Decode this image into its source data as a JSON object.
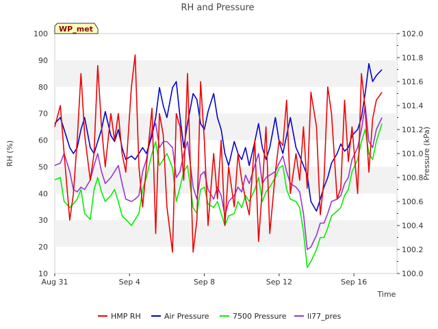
{
  "chart_data": {
    "type": "line",
    "title": "RH and Pressure",
    "badge": "WP_met",
    "xlabel": "Time",
    "ylabel": "RH (%)",
    "y2label": "Pressure (kPa)",
    "x_ticks": [
      "Aug 31",
      "Sep 4",
      "Sep 8",
      "Sep 12",
      "Sep 16"
    ],
    "x_tick_days": [
      0,
      4,
      8,
      12,
      16
    ],
    "xlim": [
      0,
      18.3
    ],
    "ylim": [
      10,
      100
    ],
    "y_ticks": [
      10,
      20,
      30,
      40,
      50,
      60,
      70,
      80,
      90,
      100
    ],
    "y2lim": [
      100.0,
      102.0
    ],
    "y2_ticks": [
      "100.0",
      "100.2",
      "100.4",
      "100.6",
      "100.8",
      "101.0",
      "101.2",
      "101.4",
      "101.6",
      "101.8",
      "102.0"
    ],
    "grid": "horizontal bands",
    "legend_position": "bottom",
    "colors": {
      "band": "#f2f2f2"
    },
    "series": [
      {
        "name": "HMP RH",
        "color": "#ee0000",
        "axis": "left",
        "x": [
          0.0,
          0.3,
          0.5,
          0.8,
          1.0,
          1.2,
          1.4,
          1.6,
          1.9,
          2.1,
          2.3,
          2.5,
          2.7,
          3.0,
          3.2,
          3.4,
          3.6,
          3.8,
          4.1,
          4.3,
          4.5,
          4.7,
          4.9,
          5.2,
          5.4,
          5.6,
          5.8,
          6.0,
          6.3,
          6.5,
          6.7,
          6.9,
          7.1,
          7.4,
          7.6,
          7.8,
          8.0,
          8.2,
          8.5,
          8.7,
          8.9,
          9.1,
          9.3,
          9.6,
          9.8,
          10.0,
          10.2,
          10.4,
          10.7,
          10.9,
          11.1,
          11.3,
          11.5,
          11.8,
          12.0,
          12.2,
          12.4,
          12.6,
          12.9,
          13.1,
          13.3,
          13.5,
          13.7,
          14.0,
          14.2,
          14.4,
          14.6,
          14.8,
          15.1,
          15.3,
          15.5,
          15.7,
          15.9,
          16.2,
          16.4,
          16.6,
          16.8,
          17.0,
          17.2,
          17.5
        ],
        "values": [
          65,
          73,
          55,
          30,
          40,
          60,
          85,
          62,
          45,
          55,
          88,
          65,
          50,
          70,
          60,
          70,
          55,
          48,
          80,
          92,
          50,
          35,
          50,
          72,
          25,
          70,
          62,
          35,
          18,
          70,
          65,
          45,
          85,
          18,
          30,
          82,
          60,
          28,
          55,
          38,
          60,
          28,
          50,
          35,
          55,
          45,
          38,
          32,
          60,
          22,
          42,
          65,
          25,
          48,
          60,
          58,
          75,
          40,
          55,
          45,
          65,
          42,
          78,
          65,
          32,
          45,
          80,
          70,
          38,
          42,
          75,
          52,
          65,
          40,
          85,
          72,
          48,
          68,
          75,
          78
        ]
      },
      {
        "name": "Air Pressure",
        "color": "#0000cc",
        "axis": "right",
        "x": [
          0.0,
          0.3,
          0.5,
          0.8,
          1.0,
          1.2,
          1.4,
          1.6,
          1.9,
          2.1,
          2.3,
          2.5,
          2.7,
          3.0,
          3.2,
          3.4,
          3.6,
          3.8,
          4.1,
          4.3,
          4.5,
          4.7,
          4.9,
          5.2,
          5.4,
          5.6,
          5.8,
          6.0,
          6.3,
          6.5,
          6.7,
          6.9,
          7.1,
          7.4,
          7.6,
          7.8,
          8.0,
          8.2,
          8.5,
          8.7,
          8.9,
          9.1,
          9.3,
          9.6,
          9.8,
          10.0,
          10.2,
          10.4,
          10.7,
          10.9,
          11.1,
          11.3,
          11.5,
          11.8,
          12.0,
          12.2,
          12.4,
          12.6,
          12.9,
          13.1,
          13.3,
          13.5,
          13.7,
          14.0,
          14.2,
          14.4,
          14.6,
          14.8,
          15.1,
          15.3,
          15.5,
          15.7,
          15.9,
          16.2,
          16.4,
          16.6,
          16.8,
          17.0,
          17.2,
          17.5
        ],
        "values": [
          101.25,
          101.3,
          101.2,
          101.05,
          101.0,
          101.05,
          101.2,
          101.3,
          101.05,
          101.0,
          101.1,
          101.2,
          101.35,
          101.15,
          101.1,
          101.2,
          101.05,
          100.95,
          100.98,
          100.95,
          101.0,
          101.05,
          101.0,
          101.15,
          101.3,
          101.55,
          101.4,
          101.3,
          101.55,
          101.6,
          101.3,
          101.05,
          101.25,
          101.5,
          101.45,
          101.25,
          101.2,
          101.35,
          101.5,
          101.3,
          101.2,
          101.0,
          100.9,
          101.1,
          101.0,
          100.95,
          101.05,
          100.9,
          101.1,
          101.25,
          101.05,
          100.95,
          101.05,
          101.3,
          101.1,
          101.0,
          101.15,
          101.3,
          101.05,
          100.98,
          100.9,
          100.82,
          100.6,
          100.52,
          100.62,
          100.72,
          100.8,
          100.92,
          101.0,
          101.08,
          101.02,
          101.05,
          101.15,
          101.2,
          101.3,
          101.5,
          101.75,
          101.6,
          101.65,
          101.7
        ]
      },
      {
        "name": "7500 Pressure",
        "color": "#00ee00",
        "axis": "right",
        "x": [
          0.0,
          0.3,
          0.5,
          0.8,
          1.0,
          1.2,
          1.4,
          1.6,
          1.9,
          2.1,
          2.3,
          2.5,
          2.7,
          3.0,
          3.2,
          3.4,
          3.6,
          3.8,
          4.1,
          4.3,
          4.5,
          4.7,
          4.9,
          5.2,
          5.4,
          5.6,
          5.8,
          6.0,
          6.3,
          6.5,
          6.7,
          6.9,
          7.1,
          7.4,
          7.6,
          7.8,
          8.0,
          8.2,
          8.5,
          8.7,
          8.9,
          9.1,
          9.3,
          9.6,
          9.8,
          10.0,
          10.2,
          10.4,
          10.7,
          10.9,
          11.1,
          11.3,
          11.5,
          11.8,
          12.0,
          12.2,
          12.4,
          12.6,
          12.9,
          13.1,
          13.3,
          13.5,
          13.7,
          14.0,
          14.2,
          14.4,
          14.6,
          14.8,
          15.1,
          15.3,
          15.5,
          15.7,
          15.9,
          16.2,
          16.4,
          16.6,
          16.8,
          17.0,
          17.2,
          17.5
        ],
        "values": [
          100.78,
          100.8,
          100.6,
          100.55,
          100.58,
          100.62,
          100.7,
          100.5,
          100.45,
          100.7,
          100.8,
          100.68,
          100.6,
          100.65,
          100.7,
          100.6,
          100.48,
          100.45,
          100.4,
          100.45,
          100.5,
          100.7,
          100.8,
          101.0,
          101.1,
          100.9,
          100.95,
          101.0,
          100.88,
          100.6,
          100.72,
          100.85,
          100.9,
          100.55,
          100.5,
          100.7,
          100.72,
          100.58,
          100.55,
          100.6,
          100.5,
          100.4,
          100.48,
          100.5,
          100.6,
          100.55,
          100.65,
          100.6,
          100.7,
          100.8,
          100.6,
          100.68,
          100.72,
          100.8,
          100.88,
          100.9,
          100.7,
          100.62,
          100.6,
          100.55,
          100.35,
          100.05,
          100.1,
          100.2,
          100.3,
          100.3,
          100.38,
          100.48,
          100.52,
          100.55,
          100.65,
          100.7,
          100.85,
          100.95,
          101.1,
          101.2,
          101.0,
          100.95,
          101.1,
          101.25
        ]
      },
      {
        "name": "li77_pres",
        "color": "#9933cc",
        "axis": "right",
        "x": [
          0.0,
          0.3,
          0.5,
          0.8,
          1.0,
          1.2,
          1.4,
          1.6,
          1.9,
          2.1,
          2.3,
          2.5,
          2.7,
          3.0,
          3.2,
          3.4,
          3.6,
          3.8,
          4.1,
          4.3,
          4.5,
          4.7,
          4.9,
          5.2,
          5.4,
          5.6,
          5.8,
          6.0,
          6.3,
          6.5,
          6.7,
          6.9,
          7.1,
          7.4,
          7.6,
          7.8,
          8.0,
          8.2,
          8.5,
          8.7,
          8.9,
          9.1,
          9.3,
          9.6,
          9.8,
          10.0,
          10.2,
          10.4,
          10.7,
          10.9,
          11.1,
          11.3,
          11.5,
          11.8,
          12.0,
          12.2,
          12.4,
          12.6,
          12.9,
          13.1,
          13.3,
          13.5,
          13.7,
          14.0,
          14.2,
          14.4,
          14.6,
          14.8,
          15.1,
          15.3,
          15.5,
          15.7,
          15.9,
          16.2,
          16.4,
          16.6,
          16.8,
          17.0,
          17.2,
          17.5
        ],
        "values": [
          100.9,
          100.92,
          101.0,
          100.85,
          100.7,
          100.68,
          100.72,
          100.7,
          100.78,
          100.9,
          101.0,
          100.85,
          100.75,
          100.8,
          100.85,
          100.9,
          100.75,
          100.62,
          100.6,
          100.62,
          100.65,
          100.85,
          100.95,
          101.2,
          101.25,
          101.05,
          101.1,
          101.1,
          101.05,
          100.8,
          100.85,
          101.0,
          101.1,
          100.72,
          100.62,
          100.82,
          100.85,
          100.7,
          100.62,
          100.72,
          100.65,
          100.48,
          100.6,
          100.65,
          100.72,
          100.68,
          100.82,
          100.75,
          100.9,
          101.0,
          100.75,
          100.8,
          100.82,
          100.85,
          100.92,
          100.98,
          100.85,
          100.75,
          100.72,
          100.68,
          100.5,
          100.2,
          100.22,
          100.32,
          100.42,
          100.42,
          100.5,
          100.6,
          100.62,
          100.65,
          100.75,
          100.8,
          100.95,
          101.05,
          101.2,
          101.4,
          101.1,
          101.05,
          101.2,
          101.3
        ]
      }
    ]
  }
}
